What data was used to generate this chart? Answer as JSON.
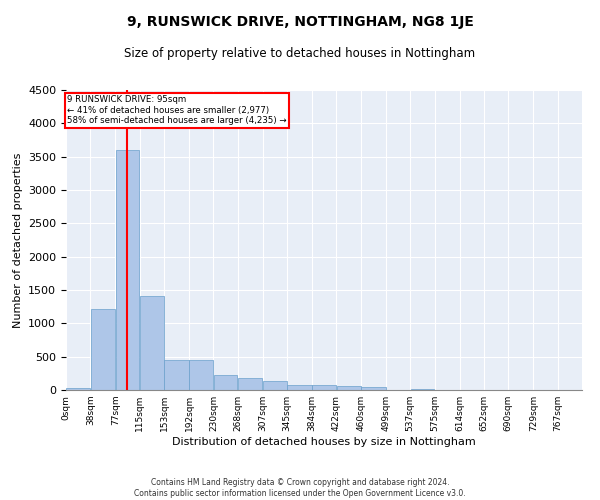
{
  "title1": "9, RUNSWICK DRIVE, NOTTINGHAM, NG8 1JE",
  "title2": "Size of property relative to detached houses in Nottingham",
  "xlabel": "Distribution of detached houses by size in Nottingham",
  "ylabel": "Number of detached properties",
  "categories": [
    "0sqm",
    "38sqm",
    "77sqm",
    "115sqm",
    "153sqm",
    "192sqm",
    "230sqm",
    "268sqm",
    "307sqm",
    "345sqm",
    "384sqm",
    "422sqm",
    "460sqm",
    "499sqm",
    "537sqm",
    "575sqm",
    "614sqm",
    "652sqm",
    "690sqm",
    "729sqm",
    "767sqm"
  ],
  "values": [
    30,
    1220,
    3600,
    1410,
    450,
    450,
    230,
    175,
    130,
    80,
    75,
    55,
    50,
    0,
    20,
    0,
    0,
    0,
    0,
    0,
    0
  ],
  "bar_color": "#aec6e8",
  "bar_edge_color": "#6aa0cc",
  "bg_color": "#e8eef7",
  "ylim": [
    0,
    4500
  ],
  "yticks": [
    0,
    500,
    1000,
    1500,
    2000,
    2500,
    3000,
    3500,
    4000,
    4500
  ],
  "annotation_line1": "9 RUNSWICK DRIVE: 95sqm",
  "annotation_line2": "← 41% of detached houses are smaller (2,977)",
  "annotation_line3": "58% of semi-detached houses are larger (4,235) →",
  "footer1": "Contains HM Land Registry data © Crown copyright and database right 2024.",
  "footer2": "Contains public sector information licensed under the Open Government Licence v3.0.",
  "bin_edges": [
    0,
    38,
    77,
    115,
    153,
    192,
    230,
    268,
    307,
    345,
    384,
    422,
    460,
    499,
    537,
    575,
    614,
    652,
    690,
    729,
    767,
    805
  ]
}
